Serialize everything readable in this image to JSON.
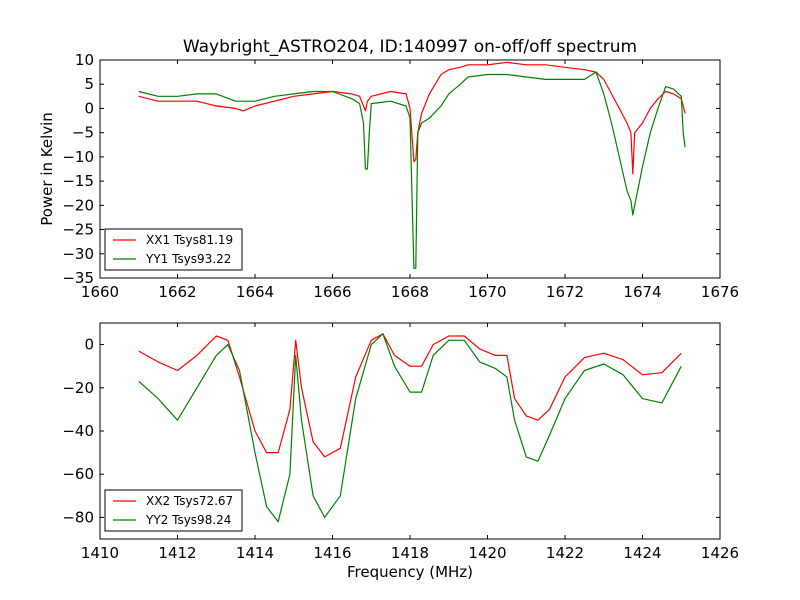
{
  "title": "Waybright_ASTRO204, ID:140997 on-off/off spectrum",
  "colors": {
    "red": "#ff0000",
    "green": "#008000"
  },
  "chart_data": [
    {
      "type": "line",
      "ylabel": "Power in Kelvin",
      "xlabel": "",
      "xlim": [
        1660,
        1676
      ],
      "ylim": [
        -35,
        10
      ],
      "xticks": [
        "1660",
        "1662",
        "1664",
        "1666",
        "1668",
        "1670",
        "1672",
        "1674",
        "1676"
      ],
      "yticks": [
        "10",
        "5",
        "0",
        "−5",
        "−10",
        "−15",
        "−20",
        "−25",
        "−30",
        "−35"
      ],
      "legend_location": "lower-left",
      "series": [
        {
          "name": "XX1 Tsys81.19",
          "color": "#ff0000",
          "x": [
            1661.0,
            1661.5,
            1662.0,
            1662.5,
            1663.0,
            1663.5,
            1663.7,
            1664.0,
            1664.5,
            1665.0,
            1665.5,
            1666.0,
            1666.5,
            1666.7,
            1666.8,
            1666.85,
            1666.9,
            1667.0,
            1667.5,
            1667.9,
            1668.0,
            1668.1,
            1668.15,
            1668.2,
            1668.3,
            1668.5,
            1668.8,
            1669.0,
            1669.3,
            1669.5,
            1670.0,
            1670.5,
            1671.0,
            1671.5,
            1672.0,
            1672.5,
            1672.8,
            1673.0,
            1673.2,
            1673.4,
            1673.6,
            1673.7,
            1673.75,
            1673.8,
            1673.9,
            1674.0,
            1674.2,
            1674.4,
            1674.6,
            1674.8,
            1675.0,
            1675.1
          ],
          "y": [
            2.5,
            1.5,
            1.5,
            1.5,
            0.5,
            0.0,
            -0.5,
            0.5,
            1.5,
            2.5,
            3.0,
            3.5,
            3.0,
            2.5,
            0.5,
            -0.5,
            1.5,
            2.5,
            3.5,
            3.0,
            0.0,
            -11.0,
            -10.5,
            -5.0,
            -1.0,
            3.0,
            7.0,
            8.0,
            8.5,
            9.0,
            9.0,
            9.5,
            9.0,
            9.0,
            8.5,
            8.0,
            7.5,
            6.0,
            3.0,
            0.0,
            -3.0,
            -5.0,
            -13.5,
            -5.0,
            -4.0,
            -3.0,
            0.0,
            2.0,
            3.5,
            3.0,
            2.0,
            -1.0
          ]
        },
        {
          "name": "YY1 Tsys93.22",
          "color": "#008000",
          "x": [
            1661.0,
            1661.5,
            1662.0,
            1662.5,
            1663.0,
            1663.5,
            1664.0,
            1664.5,
            1665.0,
            1665.5,
            1666.0,
            1666.5,
            1666.7,
            1666.8,
            1666.85,
            1666.9,
            1666.95,
            1667.0,
            1667.5,
            1667.9,
            1668.0,
            1668.1,
            1668.15,
            1668.2,
            1668.3,
            1668.5,
            1668.8,
            1669.0,
            1669.3,
            1669.5,
            1670.0,
            1670.5,
            1671.0,
            1671.5,
            1672.0,
            1672.5,
            1672.8,
            1673.0,
            1673.2,
            1673.4,
            1673.6,
            1673.7,
            1673.75,
            1673.8,
            1673.9,
            1674.0,
            1674.2,
            1674.4,
            1674.6,
            1674.8,
            1675.0,
            1675.05,
            1675.1
          ],
          "y": [
            3.5,
            2.5,
            2.5,
            3.0,
            3.0,
            1.5,
            1.5,
            2.5,
            3.0,
            3.5,
            3.5,
            2.0,
            1.0,
            -3.0,
            -12.5,
            -12.5,
            -5.0,
            1.0,
            1.5,
            0.5,
            -2.0,
            -33.0,
            -33.0,
            -5.0,
            -3.0,
            -2.0,
            0.5,
            3.0,
            5.0,
            6.5,
            7.0,
            7.0,
            6.5,
            6.0,
            6.0,
            6.0,
            7.5,
            3.0,
            -3.0,
            -10.0,
            -17.0,
            -19.0,
            -22.0,
            -20.0,
            -16.0,
            -12.0,
            -5.0,
            0.0,
            4.5,
            4.0,
            2.5,
            -5.0,
            -8.0
          ]
        }
      ]
    },
    {
      "type": "line",
      "ylabel": "",
      "xlabel": "Frequency (MHz)",
      "xlim": [
        1410,
        1426
      ],
      "ylim": [
        -90,
        10
      ],
      "xticks": [
        "1410",
        "1412",
        "1414",
        "1416",
        "1418",
        "1420",
        "1422",
        "1424",
        "1426"
      ],
      "yticks": [
        "0",
        "−20",
        "−40",
        "−60",
        "−80"
      ],
      "legend_location": "lower-left",
      "series": [
        {
          "name": "XX2 Tsys72.67",
          "color": "#ff0000",
          "x": [
            1411.0,
            1411.5,
            1412.0,
            1412.5,
            1413.0,
            1413.3,
            1413.6,
            1414.0,
            1414.3,
            1414.6,
            1414.9,
            1415.05,
            1415.2,
            1415.5,
            1415.8,
            1416.2,
            1416.6,
            1417.0,
            1417.3,
            1417.6,
            1418.0,
            1418.3,
            1418.6,
            1419.0,
            1419.4,
            1419.8,
            1420.2,
            1420.5,
            1420.7,
            1421.0,
            1421.3,
            1421.6,
            1422.0,
            1422.5,
            1423.0,
            1423.5,
            1424.0,
            1424.5,
            1425.0
          ],
          "y": [
            -3,
            -8,
            -12,
            -5,
            4,
            2,
            -15,
            -40,
            -50,
            -50,
            -30,
            2,
            -20,
            -45,
            -52,
            -48,
            -15,
            2,
            5,
            -5,
            -10,
            -10,
            0,
            4,
            4,
            -2,
            -5,
            -5,
            -25,
            -33,
            -35,
            -30,
            -15,
            -6,
            -4,
            -7,
            -14,
            -13,
            -4
          ]
        },
        {
          "name": "YY2 Tsys98.24",
          "color": "#008000",
          "x": [
            1411.0,
            1411.5,
            1412.0,
            1412.5,
            1413.0,
            1413.3,
            1413.6,
            1414.0,
            1414.3,
            1414.6,
            1414.9,
            1415.05,
            1415.2,
            1415.5,
            1415.8,
            1416.2,
            1416.6,
            1417.0,
            1417.3,
            1417.6,
            1418.0,
            1418.3,
            1418.6,
            1419.0,
            1419.4,
            1419.8,
            1420.2,
            1420.5,
            1420.7,
            1421.0,
            1421.3,
            1421.6,
            1422.0,
            1422.5,
            1423.0,
            1423.5,
            1424.0,
            1424.5,
            1425.0
          ],
          "y": [
            -17,
            -25,
            -35,
            -20,
            -5,
            0,
            -12,
            -50,
            -75,
            -82,
            -60,
            -5,
            -35,
            -70,
            -80,
            -70,
            -25,
            0,
            5,
            -10,
            -22,
            -22,
            -5,
            2,
            2,
            -8,
            -11,
            -15,
            -35,
            -52,
            -54,
            -42,
            -25,
            -12,
            -9,
            -14,
            -25,
            -27,
            -10
          ]
        }
      ]
    }
  ]
}
